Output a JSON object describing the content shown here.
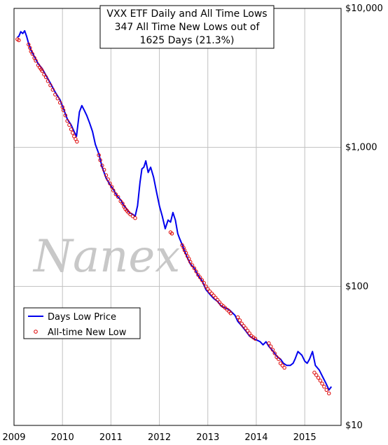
{
  "chart_data": {
    "type": "line",
    "title_lines": [
      "VXX ETF Daily and All Time Lows",
      "347 All Time New Lows out of",
      "1625 Days (21.3%)"
    ],
    "watermark": "Nanex",
    "y_scale": "log",
    "ylim": [
      10,
      10000
    ],
    "y_ticks": [
      {
        "value": 10000,
        "label": "$10,000"
      },
      {
        "value": 1000,
        "label": "$1,000"
      },
      {
        "value": 100,
        "label": "$100"
      },
      {
        "value": 10,
        "label": "$10"
      }
    ],
    "xlim": [
      2009.0,
      2015.75
    ],
    "x_ticks": [
      {
        "value": 2009,
        "label": "2009"
      },
      {
        "value": 2010,
        "label": "2010"
      },
      {
        "value": 2011,
        "label": "2011"
      },
      {
        "value": 2012,
        "label": "2012"
      },
      {
        "value": 2013,
        "label": "2013"
      },
      {
        "value": 2014,
        "label": "2014"
      },
      {
        "value": 2015,
        "label": "2015"
      }
    ],
    "grid": true,
    "legend_position": "lower-left",
    "series": [
      {
        "name": "Days Low Price",
        "color": "#0000ee",
        "style": "line",
        "x": [
          2009.07,
          2009.1,
          2009.14,
          2009.18,
          2009.22,
          2009.26,
          2009.3,
          2009.35,
          2009.42,
          2009.5,
          2009.58,
          2009.66,
          2009.75,
          2009.85,
          2009.95,
          2010.02,
          2010.1,
          2010.18,
          2010.24,
          2010.29,
          2010.35,
          2010.4,
          2010.45,
          2010.5,
          2010.56,
          2010.62,
          2010.68,
          2010.75,
          2010.82,
          2010.9,
          2010.98,
          2011.05,
          2011.12,
          2011.2,
          2011.27,
          2011.33,
          2011.38,
          2011.45,
          2011.5,
          2011.55,
          2011.6,
          2011.64,
          2011.68,
          2011.72,
          2011.77,
          2011.82,
          2011.88,
          2011.94,
          2012.0,
          2012.06,
          2012.12,
          2012.18,
          2012.23,
          2012.28,
          2012.33,
          2012.38,
          2012.42,
          2012.47,
          2012.52,
          2012.58,
          2012.64,
          2012.72,
          2012.8,
          2012.88,
          2012.96,
          2013.04,
          2013.12,
          2013.2,
          2013.28,
          2013.36,
          2013.44,
          2013.5,
          2013.56,
          2013.62,
          2013.7,
          2013.78,
          2013.86,
          2013.94,
          2014.02,
          2014.08,
          2014.14,
          2014.2,
          2014.26,
          2014.32,
          2014.38,
          2014.44,
          2014.5,
          2014.56,
          2014.63,
          2014.7,
          2014.76,
          2014.8,
          2014.86,
          2014.94,
          2015.0,
          2015.05,
          2015.1,
          2015.16,
          2015.22,
          2015.3,
          2015.38,
          2015.44,
          2015.5,
          2015.55
        ],
        "values": [
          6200,
          6300,
          6800,
          6600,
          6900,
          6300,
          5600,
          5000,
          4500,
          4000,
          3700,
          3300,
          2900,
          2500,
          2200,
          1900,
          1600,
          1450,
          1300,
          1200,
          1800,
          2000,
          1850,
          1700,
          1500,
          1300,
          1050,
          900,
          720,
          600,
          540,
          500,
          450,
          420,
          380,
          360,
          340,
          330,
          320,
          380,
          560,
          700,
          720,
          800,
          660,
          720,
          610,
          480,
          380,
          320,
          260,
          300,
          290,
          340,
          300,
          240,
          220,
          200,
          180,
          160,
          145,
          135,
          120,
          110,
          95,
          88,
          82,
          78,
          72,
          70,
          68,
          65,
          62,
          56,
          52,
          48,
          44,
          42,
          41,
          40,
          38,
          40,
          37,
          35,
          33,
          31,
          30,
          28,
          27,
          27,
          28,
          30,
          34,
          32,
          29,
          28,
          30,
          34,
          27,
          25,
          22,
          20,
          18,
          19
        ]
      },
      {
        "name": "All-time New Low",
        "color": "#dd0000",
        "style": "markers",
        "x": [
          2009.07,
          2009.1,
          2009.3,
          2009.33,
          2009.35,
          2009.38,
          2009.42,
          2009.45,
          2009.5,
          2009.53,
          2009.56,
          2009.58,
          2009.62,
          2009.66,
          2009.7,
          2009.75,
          2009.8,
          2009.85,
          2009.9,
          2009.95,
          2010.0,
          2010.02,
          2010.06,
          2010.1,
          2010.14,
          2010.18,
          2010.21,
          2010.24,
          2010.27,
          2010.3,
          2010.75,
          2010.78,
          2010.82,
          2010.86,
          2010.9,
          2010.94,
          2010.98,
          2011.02,
          2011.05,
          2011.1,
          2011.15,
          2011.2,
          2011.24,
          2011.27,
          2011.3,
          2011.33,
          2011.36,
          2011.4,
          2011.45,
          2011.5,
          2012.23,
          2012.26,
          2012.47,
          2012.5,
          2012.52,
          2012.55,
          2012.58,
          2012.61,
          2012.64,
          2012.68,
          2012.72,
          2012.76,
          2012.8,
          2012.84,
          2012.88,
          2012.92,
          2012.96,
          2013.0,
          2013.04,
          2013.08,
          2013.12,
          2013.16,
          2013.2,
          2013.24,
          2013.28,
          2013.32,
          2013.36,
          2013.4,
          2013.44,
          2013.47,
          2013.62,
          2013.66,
          2013.7,
          2013.74,
          2013.78,
          2013.82,
          2013.86,
          2013.9,
          2013.94,
          2013.98,
          2014.26,
          2014.3,
          2014.34,
          2014.38,
          2014.42,
          2014.46,
          2014.5,
          2014.54,
          2014.58,
          2015.2,
          2015.24,
          2015.28,
          2015.32,
          2015.36,
          2015.4,
          2015.45,
          2015.5
        ],
        "values": [
          6000,
          5900,
          5500,
          5200,
          4900,
          4700,
          4400,
          4200,
          3900,
          3750,
          3650,
          3550,
          3350,
          3200,
          3000,
          2800,
          2600,
          2400,
          2250,
          2100,
          1950,
          1850,
          1700,
          1550,
          1450,
          1350,
          1270,
          1200,
          1150,
          1100,
          880,
          810,
          740,
          690,
          630,
          590,
          550,
          520,
          490,
          460,
          440,
          410,
          395,
          375,
          360,
          350,
          340,
          330,
          320,
          310,
          245,
          240,
          198,
          190,
          182,
          174,
          165,
          158,
          150,
          142,
          135,
          128,
          121,
          116,
          111,
          106,
          100,
          96,
          92,
          89,
          86,
          83,
          80,
          77,
          74,
          72,
          70,
          68,
          66,
          64,
          60,
          57,
          54,
          52,
          50,
          48,
          46,
          44,
          43,
          42,
          39,
          37,
          35,
          33,
          31,
          30,
          28,
          27,
          26,
          24,
          23,
          22,
          21,
          20,
          19,
          18,
          17
        ]
      }
    ]
  }
}
